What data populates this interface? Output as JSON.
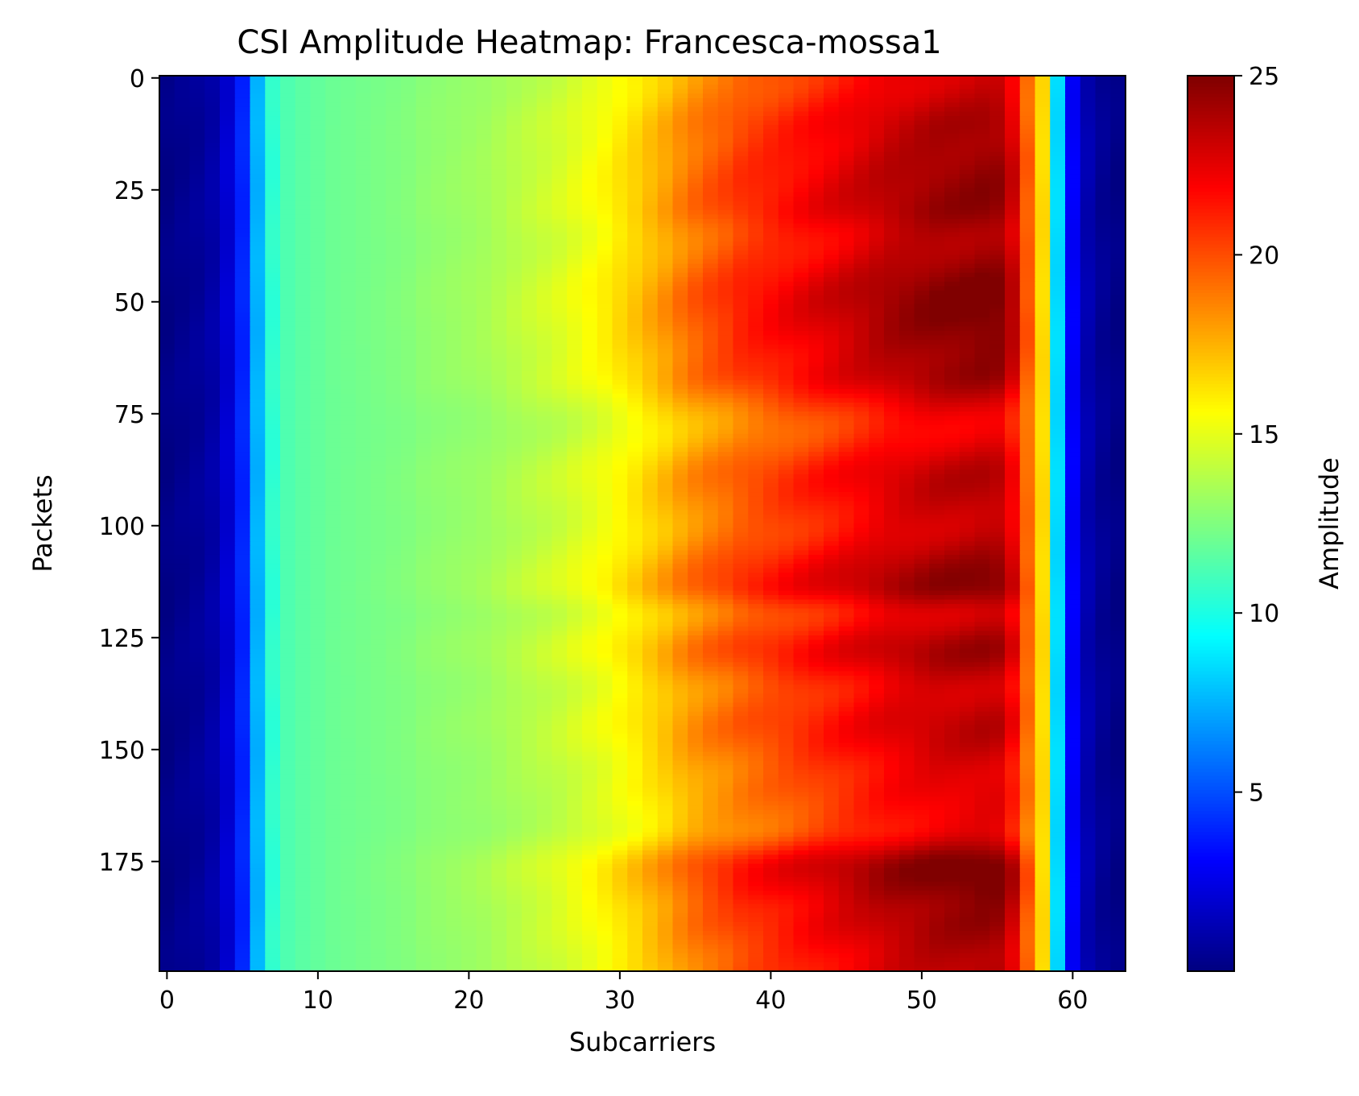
{
  "chart_data": {
    "type": "heatmap",
    "title": "CSI Amplitude Heatmap: Francesca-mossa1",
    "xlabel": "Subcarriers",
    "ylabel": "Packets",
    "colorbar_label": "Amplitude",
    "colormap": "jet",
    "x_ticks": [
      0,
      10,
      20,
      30,
      40,
      50,
      60
    ],
    "y_ticks": [
      0,
      25,
      50,
      75,
      100,
      125,
      150,
      175
    ],
    "colorbar_ticks": [
      5,
      10,
      15,
      20,
      25
    ],
    "xlim": [
      -0.5,
      63.5
    ],
    "ylim": [
      199.5,
      -0.5
    ],
    "color_range": [
      0,
      25
    ],
    "n_subcarriers": 64,
    "n_packets": 200,
    "profile_base": [
      0.2,
      0.4,
      0.6,
      1.0,
      2.0,
      4.0,
      7.5,
      10.5,
      11.3,
      11.6,
      11.8,
      12.0,
      12.1,
      12.2,
      12.3,
      12.4,
      12.5,
      12.7,
      12.8,
      12.9,
      13.0,
      13.1,
      13.3,
      13.5,
      13.7,
      13.9,
      14.1,
      14.4,
      14.7,
      15.0,
      15.4,
      15.8,
      16.3,
      16.8,
      17.4,
      17.9,
      18.3,
      18.6,
      19.0,
      19.3,
      19.6,
      19.9,
      20.2,
      20.5,
      20.8,
      21.1,
      21.4,
      21.7,
      22.0,
      22.2,
      22.4,
      22.6,
      22.7,
      22.8,
      22.9,
      22.8,
      21.5,
      19.0,
      16.5,
      8.5,
      3.0,
      1.2,
      0.5,
      0.2
    ],
    "row_intensity": [
      {
        "packet": 0,
        "value": 0.55
      },
      {
        "packet": 12,
        "value": 0.85
      },
      {
        "packet": 28,
        "value": 1.0
      },
      {
        "packet": 36,
        "value": 0.8
      },
      {
        "packet": 50,
        "value": 1.15
      },
      {
        "packet": 65,
        "value": 0.95
      },
      {
        "packet": 78,
        "value": 0.3
      },
      {
        "packet": 90,
        "value": 0.75
      },
      {
        "packet": 100,
        "value": 0.6
      },
      {
        "packet": 113,
        "value": 1.05
      },
      {
        "packet": 120,
        "value": 0.55
      },
      {
        "packet": 128,
        "value": 0.9
      },
      {
        "packet": 137,
        "value": 0.55
      },
      {
        "packet": 145,
        "value": 0.7
      },
      {
        "packet": 157,
        "value": 0.45
      },
      {
        "packet": 167,
        "value": 0.35
      },
      {
        "packet": 177,
        "value": 1.2
      },
      {
        "packet": 187,
        "value": 0.95
      },
      {
        "packet": 199,
        "value": 0.75
      }
    ]
  }
}
